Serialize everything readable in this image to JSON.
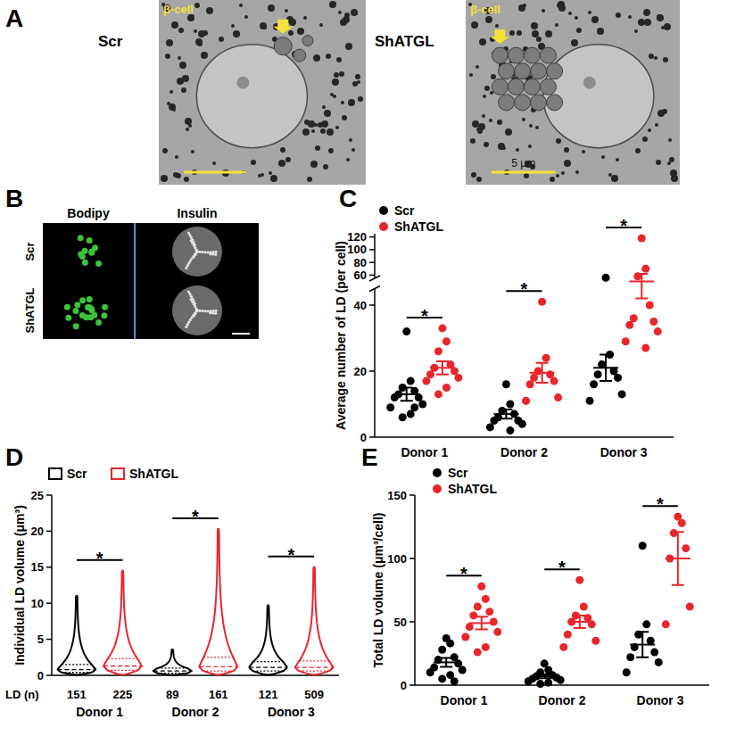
{
  "figure_panels": {
    "A": {
      "panel_label": "A",
      "images": [
        {
          "label": "Scr",
          "cell_label": "β-cell"
        },
        {
          "label": "ShATGL",
          "cell_label": "β-cell",
          "scale_bar": "5 μm"
        }
      ]
    },
    "B": {
      "panel_label": "B",
      "columns": [
        "Bodipy",
        "Insulin"
      ],
      "rows": [
        "Scr",
        "ShATGL"
      ]
    }
  },
  "chart_data": [
    {
      "panel_label": "C",
      "type": "dot_plot",
      "y_label": "Average number of LD (per cell)",
      "categories": [
        "Donor 1",
        "Donor 2",
        "Donor 3"
      ],
      "series": [
        {
          "name": "Scr",
          "color": "#000000",
          "marker": "circle",
          "values": [
            [
              32,
              17,
              15,
              14,
              13,
              12,
              12,
              10,
              9,
              7,
              6,
              9
            ],
            [
              16,
              10,
              8,
              7,
              6,
              5,
              5,
              4,
              3,
              2
            ],
            [
              56,
              25,
              22,
              20,
              19,
              18,
              16,
              13,
              11
            ]
          ],
          "mean": [
            13,
            7,
            21
          ],
          "sem": [
            2,
            1.4,
            4
          ]
        },
        {
          "name": "ShATGL",
          "color": "#e8262b",
          "marker": "circle",
          "values": [
            [
              33,
              29,
              26,
              22,
              21,
              20,
              19,
              18,
              17,
              15,
              13
            ],
            [
              41,
              24,
              20,
              19,
              18,
              17,
              16,
              12,
              11
            ],
            [
              118,
              70,
              58,
              40,
              36,
              35,
              34,
              32,
              29,
              27
            ]
          ],
          "mean": [
            21,
            19.5,
            52
          ],
          "sem": [
            2,
            3,
            10
          ]
        }
      ],
      "ylim": [
        0,
        125
      ],
      "yticks": [
        0,
        20,
        40,
        60,
        80,
        100,
        120
      ],
      "y_break": [
        45,
        55
      ],
      "legend": "upper left",
      "annotations": [
        "*",
        "*",
        "*"
      ]
    },
    {
      "panel_label": "D",
      "type": "violin",
      "y_label": "Individual LD volume (μm³)",
      "categories": [
        "Donor 1",
        "Donor 2",
        "Donor 3"
      ],
      "series": [
        {
          "name": "Scr",
          "color": "#000000",
          "min": [
            0.05,
            0.05,
            0.05
          ],
          "q1": [
            0.4,
            0.3,
            0.6
          ],
          "median": [
            0.8,
            0.6,
            1.1
          ],
          "q3": [
            1.5,
            1.0,
            1.9
          ],
          "max": [
            11,
            3.6,
            9.7
          ],
          "n": [
            151,
            89,
            121
          ]
        },
        {
          "name": "ShATGL",
          "color": "#e8262b",
          "min": [
            0.05,
            0.05,
            0.05
          ],
          "q1": [
            0.7,
            0.6,
            0.6
          ],
          "median": [
            1.3,
            1.2,
            1.1
          ],
          "q3": [
            2.3,
            2.5,
            2.0
          ],
          "max": [
            14.5,
            20.3,
            15
          ],
          "n": [
            225,
            161,
            509
          ]
        }
      ],
      "n_label": "LD (n)",
      "ylim": [
        0,
        25
      ],
      "yticks": [
        0,
        5,
        10,
        15,
        20,
        25
      ],
      "legend": "upper left",
      "annotations": [
        "*",
        "*",
        "*"
      ]
    },
    {
      "panel_label": "E",
      "type": "dot_plot",
      "y_label": "Total LD volume (μm³/cell)",
      "categories": [
        "Donor 1",
        "Donor 2",
        "Donor 3"
      ],
      "series": [
        {
          "name": "Scr",
          "color": "#000000",
          "marker": "circle",
          "values": [
            [
              37,
              33,
              28,
              22,
              20,
              17,
              14,
              12,
              10,
              8,
              5,
              3
            ],
            [
              17,
              12,
              10,
              8,
              7,
              6,
              5,
              4,
              3,
              2,
              1
            ],
            [
              110,
              48,
              40,
              35,
              30,
              26,
              22,
              18,
              10
            ]
          ],
          "mean": [
            18,
            7,
            32
          ],
          "sem": [
            3.5,
            1.5,
            10
          ]
        },
        {
          "name": "ShATGL",
          "color": "#e8262b",
          "marker": "circle",
          "values": [
            [
              78,
              68,
              62,
              58,
              55,
              50,
              46,
              42,
              38,
              30,
              26
            ],
            [
              83,
              62,
              55,
              53,
              50,
              48,
              40,
              35,
              30
            ],
            [
              133,
              128,
              120,
              108,
              100,
              62,
              48
            ]
          ],
          "mean": [
            49,
            50,
            100
          ],
          "sem": [
            5,
            5,
            21
          ]
        }
      ],
      "ylim": [
        0,
        150
      ],
      "yticks": [
        0,
        50,
        100,
        150
      ],
      "legend": "upper left",
      "annotations": [
        "*",
        "*",
        "*"
      ]
    }
  ]
}
